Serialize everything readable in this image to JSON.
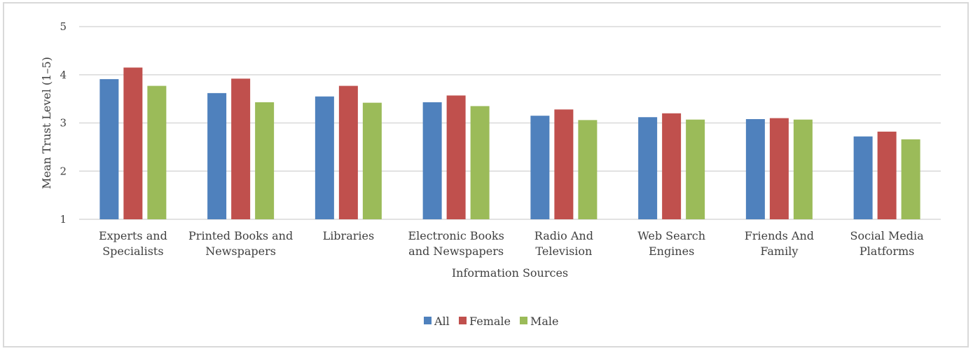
{
  "chart_data": {
    "type": "bar",
    "title": "",
    "xlabel": "Information Sources",
    "ylabel": "Mean Trust Level (1–5)",
    "ylim": [
      1,
      5
    ],
    "yticks": [
      1,
      2,
      3,
      4,
      5
    ],
    "grid": true,
    "legend_position": "bottom",
    "categories": [
      [
        "Experts and",
        "Specialists"
      ],
      [
        "Printed Books and",
        "Newspapers"
      ],
      [
        "Libraries"
      ],
      [
        "Electronic Books",
        "and Newspapers"
      ],
      [
        "Radio And",
        "Television"
      ],
      [
        "Web Search",
        "Engines"
      ],
      [
        "Friends And",
        "Family"
      ],
      [
        "Social Media",
        "Platforms"
      ]
    ],
    "series": [
      {
        "name": "All",
        "color": "#4f81bd",
        "values": [
          3.91,
          3.62,
          3.55,
          3.43,
          3.15,
          3.12,
          3.08,
          2.72
        ]
      },
      {
        "name": "Female",
        "color": "#c0504d",
        "values": [
          4.15,
          3.92,
          3.77,
          3.57,
          3.28,
          3.2,
          3.1,
          2.82
        ]
      },
      {
        "name": "Male",
        "color": "#9bbb59",
        "values": [
          3.77,
          3.43,
          3.42,
          3.35,
          3.06,
          3.07,
          3.07,
          2.66
        ]
      }
    ]
  }
}
